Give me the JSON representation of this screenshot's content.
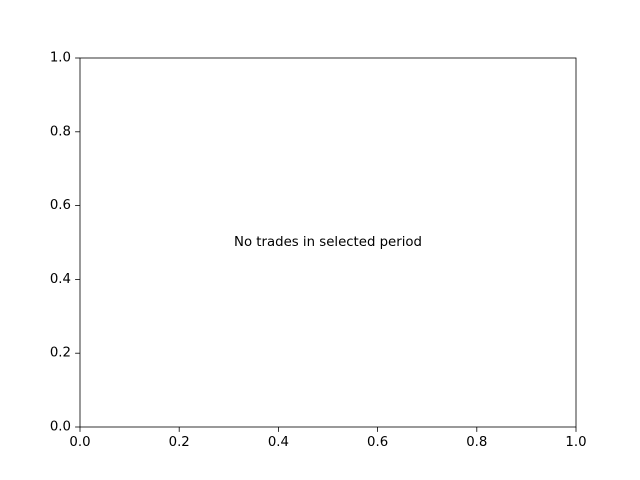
{
  "chart_data": {
    "type": "line",
    "title": "",
    "xlabel": "",
    "ylabel": "",
    "xlim": [
      0.0,
      1.0
    ],
    "ylim": [
      0.0,
      1.0
    ],
    "x_ticks": [
      "0.0",
      "0.2",
      "0.4",
      "0.6",
      "0.8",
      "1.0"
    ],
    "y_ticks": [
      "0.0",
      "0.2",
      "0.4",
      "0.6",
      "0.8",
      "1.0"
    ],
    "series": [],
    "grid": false,
    "annotation": {
      "text": "No trades in selected period",
      "x": 0.5,
      "y": 0.5
    }
  }
}
